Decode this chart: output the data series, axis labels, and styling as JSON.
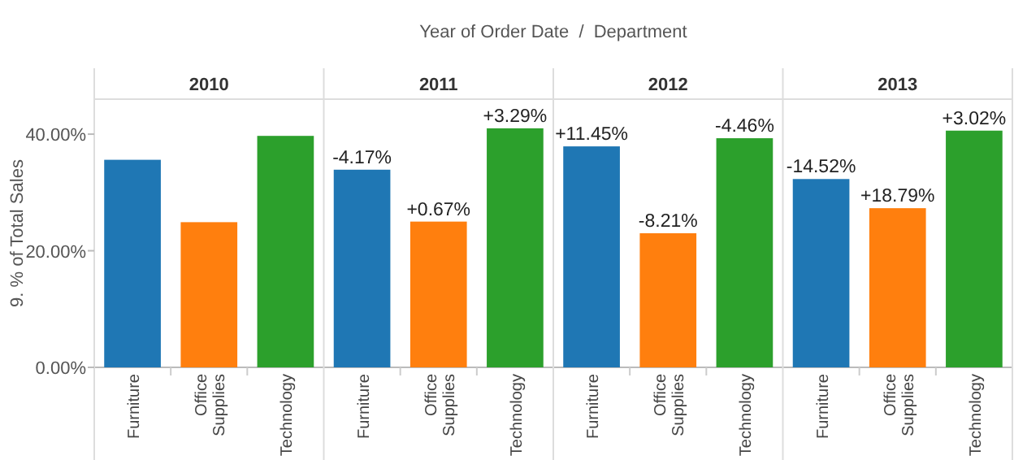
{
  "chart_data": [
    {
      "type": "bar",
      "title": "2010",
      "annotations": [
        "Year of Order Date  /  Department"
      ],
      "ylabel": "9. % of Total Sales",
      "categories": [
        "Furniture",
        "Office Supplies",
        "Technology"
      ],
      "values": [
        35.6,
        24.9,
        39.7
      ],
      "colors": [
        "#1f77b4",
        "#ff7f0e",
        "#2ca02c"
      ],
      "ylim": [
        0,
        46
      ],
      "yticks": [
        {
          "value": 0,
          "label": "0.00%"
        },
        {
          "value": 20,
          "label": "20.00%"
        },
        {
          "value": 40,
          "label": "40.00%"
        }
      ]
    },
    {
      "type": "bar",
      "title": "2011",
      "categories": [
        "Furniture",
        "Office Supplies",
        "Technology"
      ],
      "values": [
        33.9,
        25.0,
        41.0
      ],
      "colors": [
        "#1f77b4",
        "#ff7f0e",
        "#2ca02c"
      ],
      "annotations": [
        {
          "text": "-4.17%",
          "x": "Furniture",
          "y": 33.9
        },
        {
          "text": "+0.67%",
          "x": "Office Supplies",
          "y": 25.0
        },
        {
          "text": "+3.29%",
          "x": "Technology",
          "y": 41.0
        }
      ],
      "ylim": [
        0,
        46
      ],
      "tick_labels": "x"
    },
    {
      "type": "bar",
      "title": "2012",
      "categories": [
        "Furniture",
        "Office Supplies",
        "Technology"
      ],
      "values": [
        37.9,
        23.0,
        39.3
      ],
      "colors": [
        "#1f77b4",
        "#ff7f0e",
        "#2ca02c"
      ],
      "annotations": [
        {
          "text": "+11.45%",
          "x": "Furniture",
          "y": 37.9
        },
        {
          "text": "-8.21%",
          "x": "Office Supplies",
          "y": 23.0
        },
        {
          "text": "-4.46%",
          "x": "Technology",
          "y": 39.3
        }
      ],
      "ylim": [
        0,
        46
      ],
      "tick_labels": "x"
    },
    {
      "type": "bar",
      "title": "2013",
      "categories": [
        "Furniture",
        "Office Supplies",
        "Technology"
      ],
      "values": [
        32.3,
        27.3,
        40.6
      ],
      "colors": [
        "#1f77b4",
        "#ff7f0e",
        "#2ca02c"
      ],
      "annotations": [
        {
          "text": "-14.52%",
          "x": "Furniture",
          "y": 32.3
        },
        {
          "text": "+18.79%",
          "x": "Office Supplies",
          "y": 27.3
        },
        {
          "text": "+3.02%",
          "x": "Technology",
          "y": 40.6
        }
      ],
      "ylim": [
        0,
        46
      ],
      "tick_labels": "x"
    }
  ]
}
